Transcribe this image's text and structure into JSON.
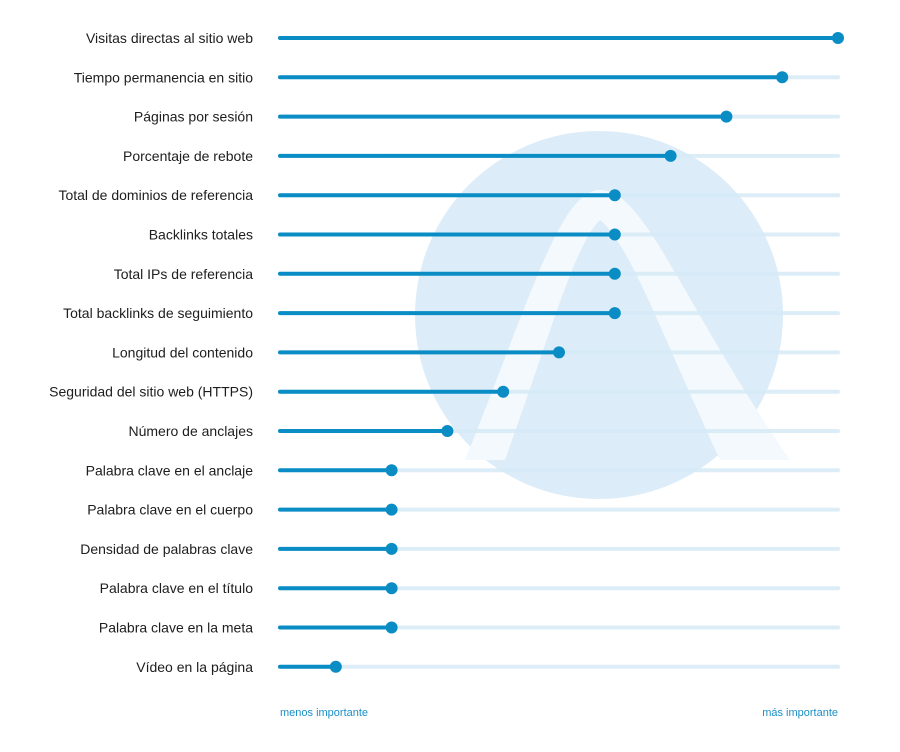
{
  "chart_data": {
    "type": "lollipop",
    "categories": [
      "Visitas directas al sitio web",
      "Tiempo permanencia en sitio",
      "Páginas por sesión",
      "Porcentaje de rebote",
      "Total de dominios de referencia",
      "Backlinks totales",
      "Total IPs de referencia",
      "Total backlinks de seguimiento",
      "Longitud del contenido",
      "Seguridad del sitio web (HTTPS)",
      "Número de anclajes",
      "Palabra clave en el anclaje",
      "Palabra clave en el cuerpo",
      "Densidad de palabras clave",
      "Palabra clave en el título",
      "Palabra clave en la meta",
      "Vídeo en la página"
    ],
    "values": [
      100,
      90,
      80,
      70,
      60,
      60,
      60,
      60,
      50,
      40,
      30,
      20,
      20,
      20,
      20,
      20,
      10
    ],
    "xlim": [
      0,
      100
    ],
    "x_min_label": "menos importante",
    "x_max_label": "más importante",
    "colors": {
      "bar": "#0a8cc4",
      "track": "#d6ebf7",
      "logo_circle": "#dcecf8",
      "logo_mark": "#f4f9fd"
    },
    "background_icon": "logo-mark-icon"
  }
}
